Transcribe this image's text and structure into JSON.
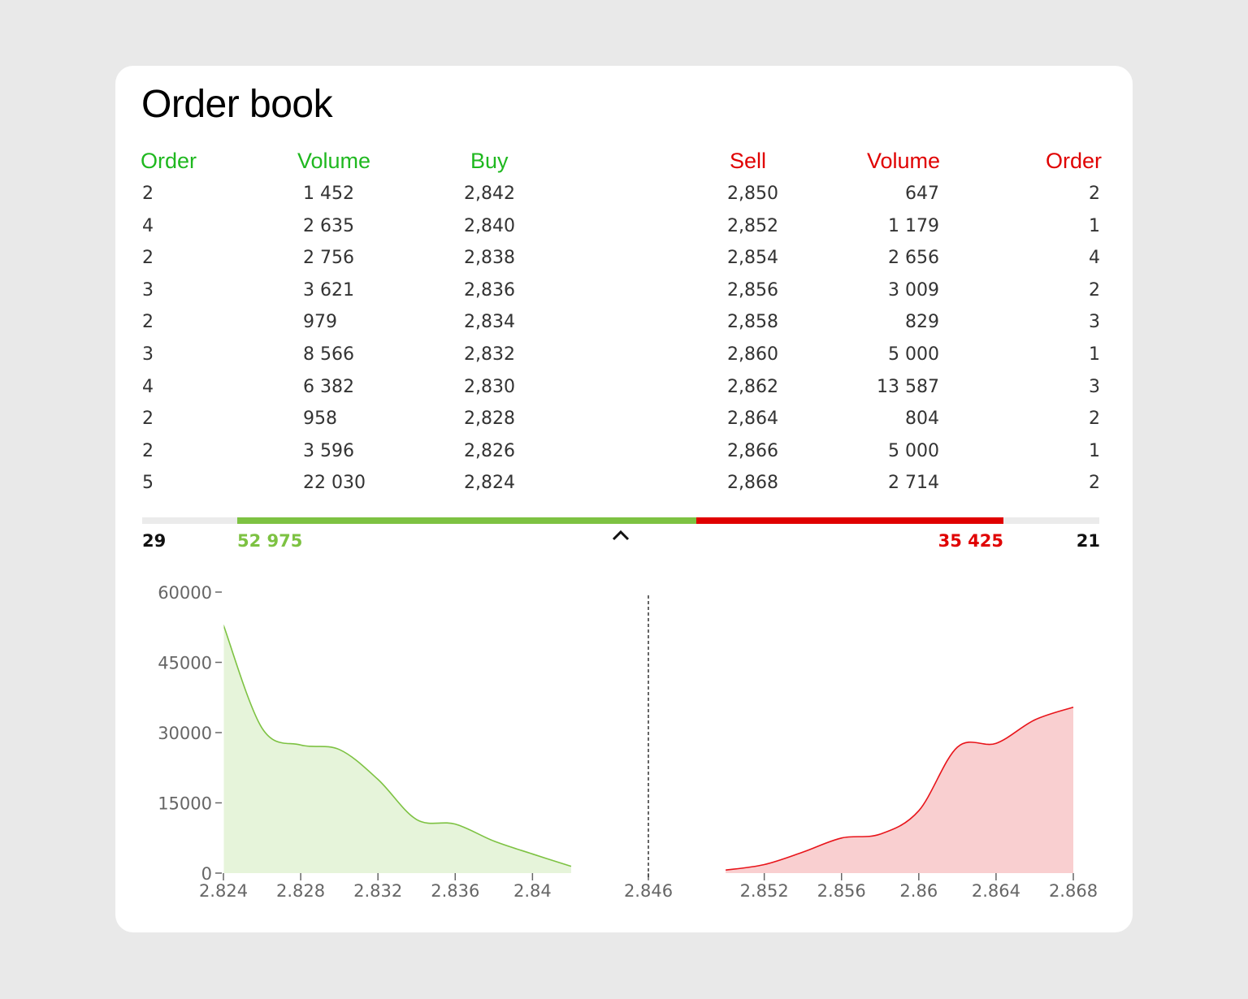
{
  "title": "Order book",
  "headers": {
    "buy_order": "Order",
    "buy_volume": "Volume",
    "buy": "Buy",
    "sell": "Sell",
    "sell_volume": "Volume",
    "sell_order": "Order"
  },
  "bids": [
    {
      "order": "2",
      "volume": "1 452",
      "price": "2,842"
    },
    {
      "order": "4",
      "volume": "2 635",
      "price": "2,840"
    },
    {
      "order": "2",
      "volume": "2 756",
      "price": "2,838"
    },
    {
      "order": "3",
      "volume": "3 621",
      "price": "2,836"
    },
    {
      "order": "2",
      "volume": "979",
      "price": "2,834"
    },
    {
      "order": "3",
      "volume": "8 566",
      "price": "2,832"
    },
    {
      "order": "4",
      "volume": "6 382",
      "price": "2,830"
    },
    {
      "order": "2",
      "volume": "958",
      "price": "2,828"
    },
    {
      "order": "2",
      "volume": "3 596",
      "price": "2,826"
    },
    {
      "order": "5",
      "volume": "22 030",
      "price": "2,824"
    }
  ],
  "asks": [
    {
      "price": "2,850",
      "volume": "647",
      "order": "2"
    },
    {
      "price": "2,852",
      "volume": "1 179",
      "order": "1"
    },
    {
      "price": "2,854",
      "volume": "2 656",
      "order": "4"
    },
    {
      "price": "2,856",
      "volume": "3 009",
      "order": "2"
    },
    {
      "price": "2,858",
      "volume": "829",
      "order": "3"
    },
    {
      "price": "2,860",
      "volume": "5 000",
      "order": "1"
    },
    {
      "price": "2,862",
      "volume": "13 587",
      "order": "3"
    },
    {
      "price": "2,864",
      "volume": "804",
      "order": "2"
    },
    {
      "price": "2,866",
      "volume": "5 000",
      "order": "1"
    },
    {
      "price": "2,868",
      "volume": "2 714",
      "order": "2"
    }
  ],
  "summary": {
    "buy_orders": "29",
    "buy_volume": "52 975",
    "sell_volume": "35 425",
    "sell_orders": "21",
    "buy_share": 0.599
  },
  "colors": {
    "buy": "#1fb81f",
    "buy_line": "#7dc242",
    "buy_fill": "#e6f4da",
    "sell": "#e00000",
    "sell_line": "#e8141a",
    "sell_fill": "#f9cfd0"
  },
  "toggle_icon": "chevron-up-icon",
  "chart_data": {
    "type": "area",
    "xlim": [
      2.824,
      2.868
    ],
    "ylim": [
      0,
      60000
    ],
    "yticks": [
      0,
      15000,
      30000,
      45000,
      60000
    ],
    "xticks": [
      2.824,
      2.828,
      2.832,
      2.836,
      2.84,
      2.846,
      2.852,
      2.856,
      2.86,
      2.864,
      2.868
    ],
    "mid_price": 2.846,
    "series": [
      {
        "side": "buy",
        "x": [
          2.824,
          2.826,
          2.828,
          2.83,
          2.832,
          2.834,
          2.836,
          2.838,
          2.84,
          2.842
        ],
        "y": [
          52975,
          30945,
          27349,
          26391,
          20009,
          11443,
          10464,
          6843,
          4087,
          1452
        ]
      },
      {
        "side": "sell",
        "x": [
          2.85,
          2.852,
          2.854,
          2.856,
          2.858,
          2.86,
          2.862,
          2.864,
          2.866,
          2.868
        ],
        "y": [
          647,
          1826,
          4482,
          7491,
          8320,
          13320,
          26907,
          27711,
          32711,
          35425
        ]
      }
    ]
  }
}
